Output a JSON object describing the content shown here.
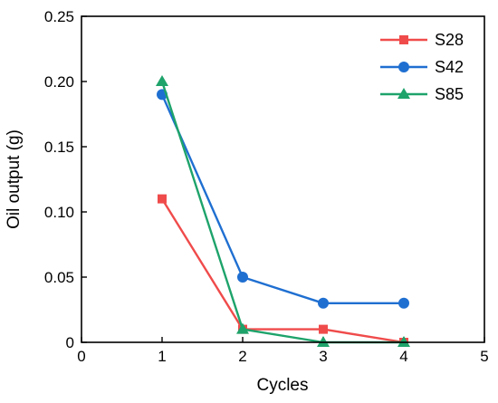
{
  "chart_data": {
    "type": "line",
    "title": "",
    "xlabel": "Cycles",
    "ylabel": "Oil output (g)",
    "xlim": [
      0,
      5
    ],
    "ylim": [
      0,
      0.25
    ],
    "x_ticks": [
      "0",
      "1",
      "2",
      "3",
      "4",
      "5"
    ],
    "y_ticks": [
      "0",
      "0.05",
      "0.10",
      "0.15",
      "0.20",
      "0.25"
    ],
    "grid": false,
    "legend_position": "top-right",
    "series": [
      {
        "name": "S28",
        "color": "#f04b4b",
        "marker": "square",
        "x": [
          1,
          2,
          3,
          4
        ],
        "y": [
          0.11,
          0.01,
          0.01,
          0.0
        ]
      },
      {
        "name": "S42",
        "color": "#1f6fd1",
        "marker": "circle",
        "x": [
          1,
          2,
          3,
          4
        ],
        "y": [
          0.19,
          0.05,
          0.03,
          0.03
        ]
      },
      {
        "name": "S85",
        "color": "#1ea36b",
        "marker": "triangle",
        "x": [
          1,
          2,
          3,
          4
        ],
        "y": [
          0.2,
          0.01,
          0.0,
          0.0
        ]
      }
    ]
  }
}
